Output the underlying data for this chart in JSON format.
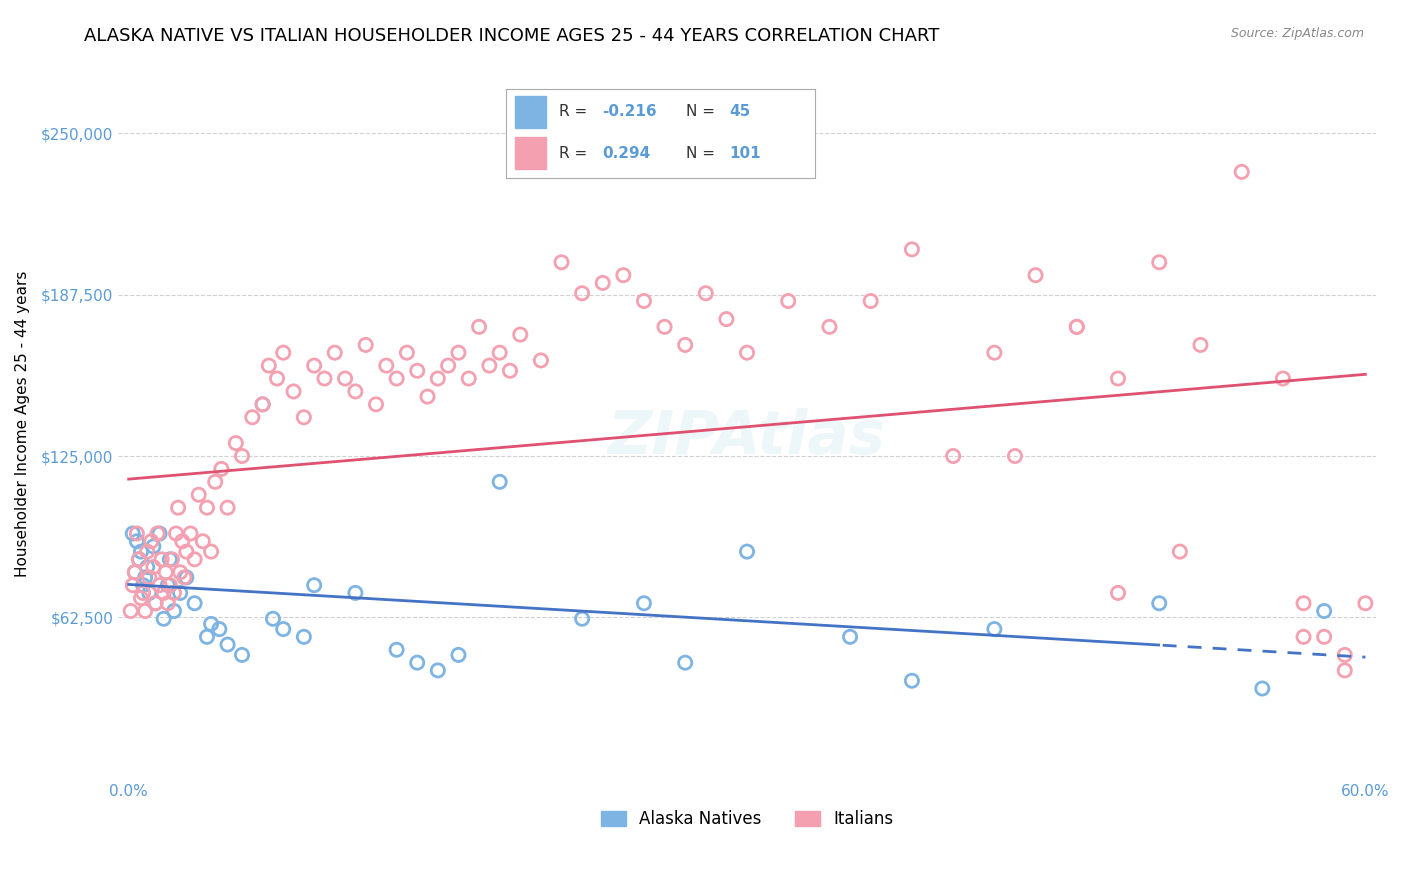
{
  "title": "ALASKA NATIVE VS ITALIAN HOUSEHOLDER INCOME AGES 25 - 44 YEARS CORRELATION CHART",
  "source": "Source: ZipAtlas.com",
  "ylabel": "Householder Income Ages 25 - 44 years",
  "xlim": [
    -0.005,
    0.605
  ],
  "ylim": [
    0,
    275000
  ],
  "yticks": [
    0,
    62500,
    125000,
    187500,
    250000
  ],
  "ytick_labels": [
    "",
    "$62,500",
    "$125,000",
    "$187,500",
    "$250,000"
  ],
  "xticks": [
    0.0,
    0.1,
    0.2,
    0.3,
    0.4,
    0.5,
    0.6
  ],
  "xtick_labels": [
    "0.0%",
    "",
    "",
    "",
    "",
    "",
    "60.0%"
  ],
  "alaska_color": "#7EB4E3",
  "italian_color": "#F4A0B0",
  "alaska_line_color": "#4472C4",
  "italian_line_color": "#E05070",
  "tick_label_color": "#5B9BD5",
  "title_fontsize": 13,
  "axis_label_fontsize": 11,
  "legend_R_color": "#5B9BD5",
  "background_color": "#FFFFFF",
  "grid_color": "#CCCCCC",
  "alaska_x": [
    0.002,
    0.003,
    0.004,
    0.005,
    0.006,
    0.007,
    0.008,
    0.009,
    0.01,
    0.012,
    0.013,
    0.015,
    0.017,
    0.019,
    0.02,
    0.022,
    0.025,
    0.028,
    0.032,
    0.038,
    0.04,
    0.044,
    0.048,
    0.055,
    0.065,
    0.07,
    0.075,
    0.085,
    0.09,
    0.11,
    0.13,
    0.14,
    0.15,
    0.16,
    0.18,
    0.22,
    0.25,
    0.27,
    0.3,
    0.35,
    0.38,
    0.42,
    0.5,
    0.55,
    0.58
  ],
  "alaska_y": [
    95000,
    80000,
    92000,
    85000,
    88000,
    75000,
    78000,
    82000,
    72000,
    90000,
    68000,
    95000,
    62000,
    75000,
    85000,
    65000,
    72000,
    78000,
    68000,
    55000,
    60000,
    58000,
    52000,
    48000,
    145000,
    62000,
    58000,
    55000,
    75000,
    72000,
    50000,
    45000,
    42000,
    48000,
    115000,
    62000,
    68000,
    45000,
    88000,
    55000,
    38000,
    58000,
    68000,
    35000,
    65000
  ],
  "italian_x": [
    0.001,
    0.002,
    0.003,
    0.004,
    0.005,
    0.006,
    0.007,
    0.008,
    0.009,
    0.01,
    0.011,
    0.012,
    0.013,
    0.014,
    0.015,
    0.016,
    0.017,
    0.018,
    0.019,
    0.02,
    0.021,
    0.022,
    0.023,
    0.024,
    0.025,
    0.026,
    0.027,
    0.028,
    0.03,
    0.032,
    0.034,
    0.036,
    0.038,
    0.04,
    0.042,
    0.045,
    0.048,
    0.052,
    0.055,
    0.06,
    0.065,
    0.068,
    0.072,
    0.075,
    0.08,
    0.085,
    0.09,
    0.095,
    0.1,
    0.105,
    0.11,
    0.115,
    0.12,
    0.125,
    0.13,
    0.135,
    0.14,
    0.145,
    0.15,
    0.155,
    0.16,
    0.165,
    0.17,
    0.175,
    0.18,
    0.185,
    0.19,
    0.2,
    0.21,
    0.22,
    0.23,
    0.24,
    0.25,
    0.26,
    0.27,
    0.28,
    0.29,
    0.3,
    0.32,
    0.34,
    0.36,
    0.38,
    0.4,
    0.42,
    0.44,
    0.46,
    0.48,
    0.5,
    0.52,
    0.54,
    0.56,
    0.57,
    0.58,
    0.59,
    0.6,
    0.43,
    0.46,
    0.48,
    0.51,
    0.57,
    0.59
  ],
  "italian_y": [
    65000,
    75000,
    80000,
    95000,
    85000,
    70000,
    72000,
    65000,
    88000,
    78000,
    92000,
    82000,
    68000,
    95000,
    75000,
    85000,
    72000,
    80000,
    68000,
    75000,
    85000,
    72000,
    95000,
    105000,
    80000,
    92000,
    78000,
    88000,
    95000,
    85000,
    110000,
    92000,
    105000,
    88000,
    115000,
    120000,
    105000,
    130000,
    125000,
    140000,
    145000,
    160000,
    155000,
    165000,
    150000,
    140000,
    160000,
    155000,
    165000,
    155000,
    150000,
    168000,
    145000,
    160000,
    155000,
    165000,
    158000,
    148000,
    155000,
    160000,
    165000,
    155000,
    175000,
    160000,
    165000,
    158000,
    172000,
    162000,
    200000,
    188000,
    192000,
    195000,
    185000,
    175000,
    168000,
    188000,
    178000,
    165000,
    185000,
    175000,
    185000,
    205000,
    125000,
    165000,
    195000,
    175000,
    155000,
    200000,
    168000,
    235000,
    155000,
    68000,
    55000,
    48000,
    68000,
    125000,
    175000,
    72000,
    88000,
    55000,
    42000
  ]
}
